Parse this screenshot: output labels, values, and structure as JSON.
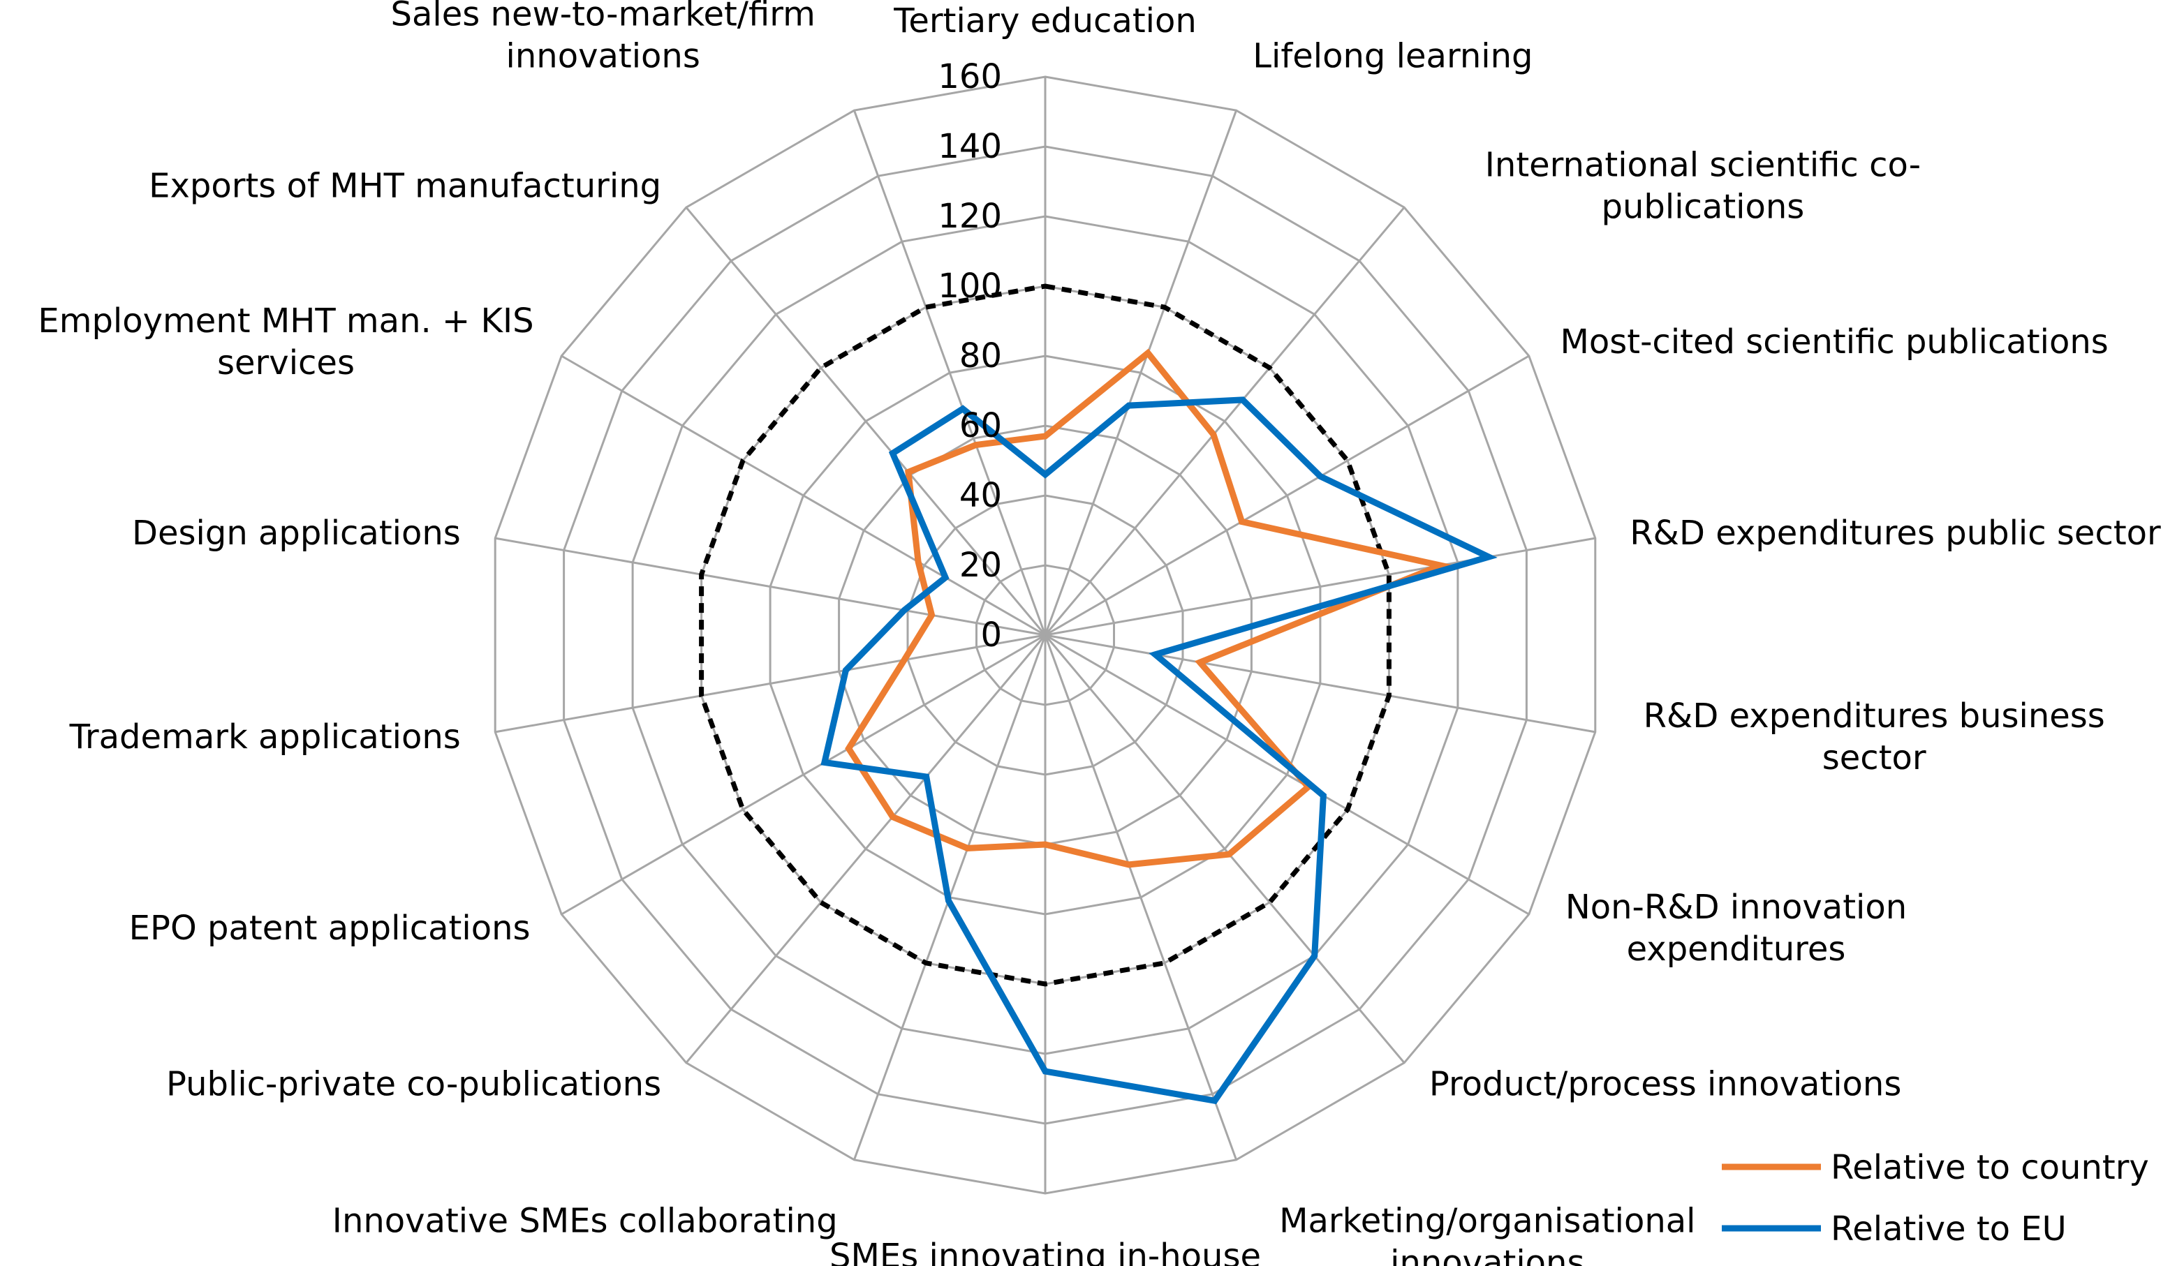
{
  "chart_data": {
    "type": "radar",
    "title": "",
    "categories": [
      "Tertiary education",
      "Lifelong learning",
      "International scientific co-publications",
      "Most-cited scientific publications",
      "R&D expenditures public sector",
      "R&D expenditures business sector",
      "Non-R&D innovation expenditures",
      "Product/process innovations",
      "Marketing/organisational innovations",
      "SMEs innovating in-house",
      "Innovative SMEs collaborating",
      "Public-private co-publications",
      "EPO patent applications",
      "Trademark applications",
      "Design applications",
      "Employment MHT man. + KIS services",
      "Exports of MHT manufacturing",
      "Sales new-to-market/firm innovations"
    ],
    "category_label_lines": [
      [
        "Tertiary education"
      ],
      [
        "Lifelong learning"
      ],
      [
        "International scientific co-",
        "publications"
      ],
      [
        "Most-cited scientific publications"
      ],
      [
        "R&D expenditures public sector"
      ],
      [
        "R&D expenditures business",
        "sector"
      ],
      [
        "Non-R&D innovation",
        "expenditures"
      ],
      [
        "Product/process innovations"
      ],
      [
        "Marketing/organisational",
        "innovations"
      ],
      [
        "SMEs innovating in-house"
      ],
      [
        "Innovative SMEs collaborating"
      ],
      [
        "Public-private co-publications"
      ],
      [
        "EPO patent applications"
      ],
      [
        "Trademark applications"
      ],
      [
        "Design applications"
      ],
      [
        "Employment MHT man. + KIS",
        "services"
      ],
      [
        "Exports of MHT manufacturing"
      ],
      [
        "Sales new-to-market/firm",
        "innovations"
      ]
    ],
    "radial_axis": {
      "min": 0,
      "max": 160,
      "step": 20,
      "tick_labels": [
        "0",
        "20",
        "40",
        "60",
        "80",
        "100",
        "120",
        "140",
        "160"
      ]
    },
    "reference": {
      "value": 100,
      "style": "dashed",
      "color": "#000000"
    },
    "series": [
      {
        "name": "Relative to country",
        "color": "#ED7D31",
        "values": [
          57,
          86,
          75,
          65,
          115,
          45,
          87,
          82,
          70,
          60,
          65,
          68,
          65,
          41,
          33,
          42,
          61,
          58
        ]
      },
      {
        "name": "Relative to EU",
        "color": "#0070C0",
        "values": [
          46,
          70,
          88,
          91,
          129,
          32,
          92,
          120,
          142,
          125,
          81,
          53,
          73,
          58,
          41,
          33,
          68,
          69
        ]
      }
    ],
    "legend": {
      "position": "bottom-right",
      "entries": [
        "Relative to country",
        "Relative to EU"
      ]
    },
    "grid": true,
    "grid_color": "#A6A6A6"
  }
}
